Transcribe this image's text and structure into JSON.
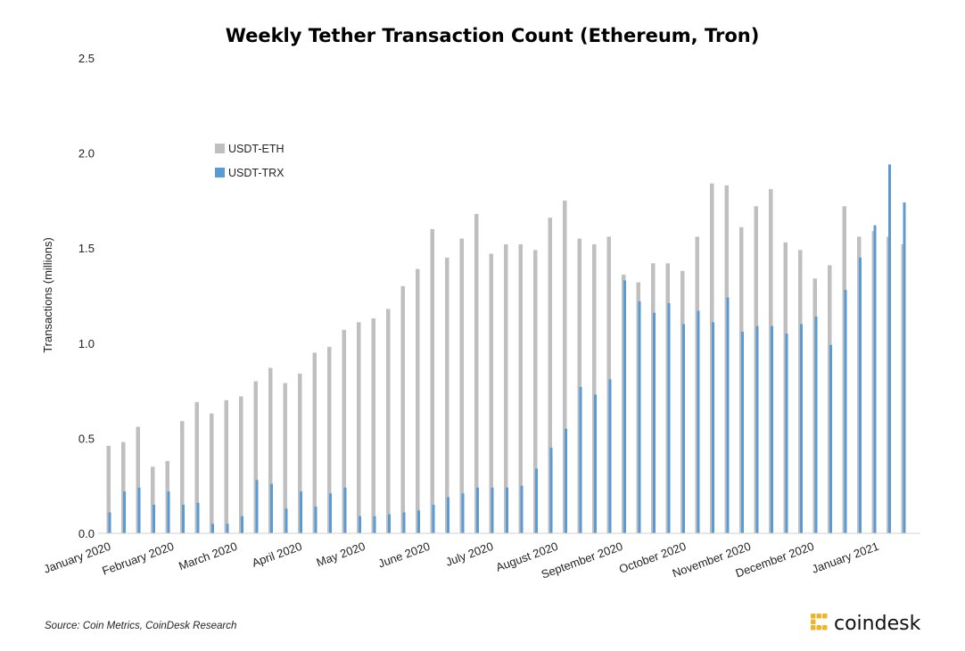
{
  "chart_data": {
    "type": "bar",
    "title": "Weekly Tether Transaction Count (Ethereum, Tron)",
    "ylabel": "Transactions (millions)",
    "xlabel": "",
    "ylim": [
      0,
      2.5
    ],
    "yticks": [
      "0.0",
      "0.5",
      "1.0",
      "1.5",
      "2.0",
      "2.5"
    ],
    "grid": false,
    "legend_position": "upper-left",
    "month_labels": [
      "January 2020",
      "February 2020",
      "March 2020",
      "April 2020",
      "May 2020",
      "June 2020",
      "July 2020",
      "August 2020",
      "September 2020",
      "October 2020",
      "November 2020",
      "December 2020",
      "January 2021"
    ],
    "series": [
      {
        "name": "USDT-ETH",
        "color": "#BFBFBF",
        "values": [
          0.46,
          0.48,
          0.56,
          0.35,
          0.38,
          0.59,
          0.69,
          0.63,
          0.7,
          0.72,
          0.8,
          0.87,
          0.79,
          0.84,
          0.95,
          0.98,
          1.07,
          1.11,
          1.13,
          1.18,
          1.3,
          1.39,
          1.6,
          1.45,
          1.55,
          1.68,
          1.47,
          1.52,
          1.52,
          1.49,
          1.66,
          1.75,
          1.55,
          1.52,
          1.56,
          1.36,
          1.32,
          1.42,
          1.42,
          1.38,
          1.56,
          1.84,
          1.83,
          1.61,
          1.72,
          1.81,
          1.53,
          1.49,
          1.34,
          1.41,
          1.72,
          1.56,
          1.59,
          1.56,
          1.52
        ]
      },
      {
        "name": "USDT-TRX",
        "color": "#5B9BD5",
        "values": [
          0.11,
          0.22,
          0.24,
          0.15,
          0.22,
          0.15,
          0.16,
          0.05,
          0.05,
          0.09,
          0.28,
          0.26,
          0.13,
          0.22,
          0.14,
          0.21,
          0.24,
          0.09,
          0.09,
          0.1,
          0.11,
          0.12,
          0.15,
          0.19,
          0.21,
          0.24,
          0.24,
          0.24,
          0.25,
          0.34,
          0.45,
          0.55,
          0.77,
          0.73,
          0.81,
          1.33,
          1.22,
          1.16,
          1.21,
          1.1,
          1.17,
          1.11,
          1.24,
          1.06,
          1.09,
          1.09,
          1.05,
          1.1,
          1.14,
          0.99,
          1.28,
          1.45,
          1.62,
          1.94,
          1.74
        ]
      }
    ]
  },
  "source_note": "Source: Coin Metrics, CoinDesk Research",
  "brand": {
    "name": "coindesk",
    "icon": "coindesk-logo-icon",
    "color": "#F0B42B"
  }
}
